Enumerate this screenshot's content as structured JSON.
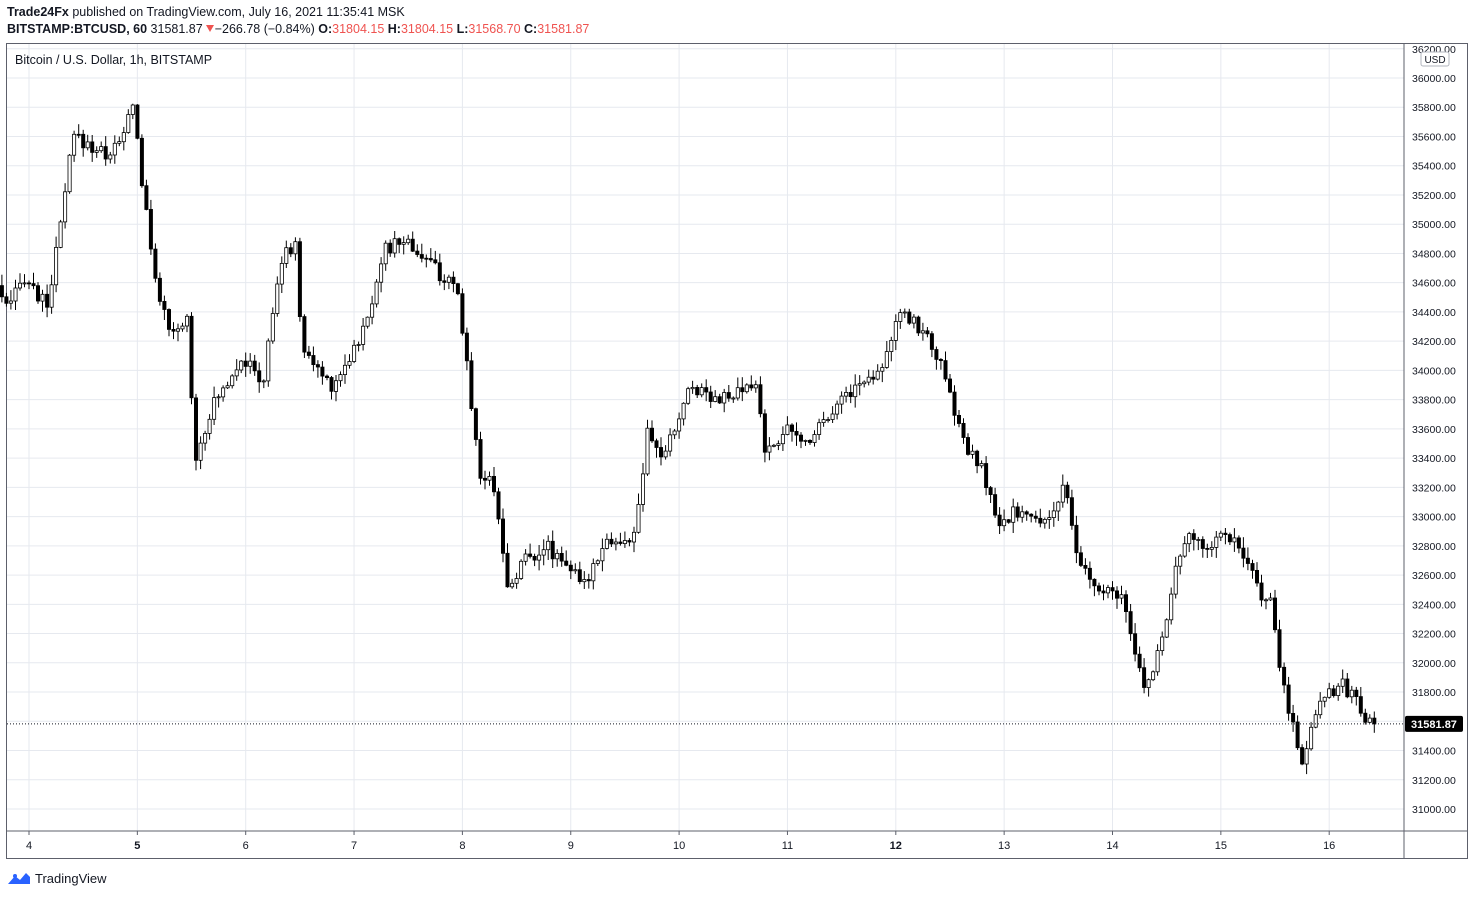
{
  "header": {
    "author": "Trade24Fx",
    "published_text": "published on TradingView.com, July 16, 2021 11:35:41 MSK",
    "symbol": "BITSTAMP:BTCUSD, 60",
    "last": "31581.87",
    "change": "−266.78 (−0.84%)",
    "o_label": "O:",
    "o": "31804.15",
    "h_label": "H:",
    "h": "31804.15",
    "l_label": "L:",
    "l": "31568.70",
    "c_label": "C:",
    "c": "31581.87"
  },
  "pane_title": "Bitcoin / U.S. Dollar, 1h, BITSTAMP",
  "currency_badge": "USD",
  "price_tag": "31581.87",
  "footer": {
    "brand": "TradingView"
  },
  "colors": {
    "candle": "#000000",
    "grid": "#e6e9ef",
    "down": "#ef5350",
    "tag_bg": "#000000",
    "brand": "#2962ff"
  },
  "chart_data": {
    "type": "candlestick",
    "interval": "1h",
    "x_ticks": [
      "4",
      "5",
      "6",
      "7",
      "8",
      "9",
      "10",
      "11",
      "12",
      "13",
      "14",
      "15",
      "16"
    ],
    "y_ticks": [
      31000,
      31200,
      31400,
      31600,
      31800,
      32000,
      32200,
      32400,
      32600,
      32800,
      33000,
      33200,
      33400,
      33600,
      33800,
      34000,
      34200,
      34400,
      34600,
      34800,
      35000,
      35200,
      35400,
      35600,
      35800,
      36000,
      36200
    ],
    "ylim": [
      30850,
      36250
    ],
    "last_price": 31581.87,
    "grid": true,
    "path": [
      [
        3.75,
        34580
      ],
      [
        3.85,
        34400
      ],
      [
        4.0,
        34650
      ],
      [
        4.2,
        34430
      ],
      [
        4.3,
        34820
      ],
      [
        4.45,
        35600
      ],
      [
        4.6,
        35540
      ],
      [
        4.75,
        35480
      ],
      [
        4.9,
        35560
      ],
      [
        5.0,
        35850
      ],
      [
        5.07,
        35380
      ],
      [
        5.15,
        34900
      ],
      [
        5.25,
        34500
      ],
      [
        5.35,
        34200
      ],
      [
        5.5,
        34350
      ],
      [
        5.58,
        33400
      ],
      [
        5.7,
        33700
      ],
      [
        5.85,
        33900
      ],
      [
        6.0,
        34100
      ],
      [
        6.2,
        33900
      ],
      [
        6.35,
        34700
      ],
      [
        6.5,
        34900
      ],
      [
        6.55,
        34200
      ],
      [
        6.7,
        34000
      ],
      [
        6.85,
        33900
      ],
      [
        7.0,
        34100
      ],
      [
        7.15,
        34300
      ],
      [
        7.3,
        34800
      ],
      [
        7.5,
        34900
      ],
      [
        7.65,
        34800
      ],
      [
        7.85,
        34650
      ],
      [
        8.0,
        34500
      ],
      [
        8.1,
        33950
      ],
      [
        8.2,
        33300
      ],
      [
        8.35,
        33200
      ],
      [
        8.45,
        32500
      ],
      [
        8.6,
        32700
      ],
      [
        8.8,
        32800
      ],
      [
        9.0,
        32700
      ],
      [
        9.15,
        32500
      ],
      [
        9.35,
        32850
      ],
      [
        9.55,
        32800
      ],
      [
        9.65,
        32950
      ],
      [
        9.75,
        33550
      ],
      [
        9.9,
        33400
      ],
      [
        10.0,
        33600
      ],
      [
        10.15,
        33900
      ],
      [
        10.3,
        33850
      ],
      [
        10.5,
        33800
      ],
      [
        10.75,
        33900
      ],
      [
        10.85,
        33400
      ],
      [
        11.0,
        33600
      ],
      [
        11.2,
        33500
      ],
      [
        11.4,
        33700
      ],
      [
        11.6,
        33850
      ],
      [
        11.8,
        33950
      ],
      [
        11.95,
        34100
      ],
      [
        12.05,
        34350
      ],
      [
        12.2,
        34350
      ],
      [
        12.4,
        34150
      ],
      [
        12.55,
        33800
      ],
      [
        12.7,
        33450
      ],
      [
        12.85,
        33300
      ],
      [
        13.0,
        32900
      ],
      [
        13.15,
        33050
      ],
      [
        13.35,
        32950
      ],
      [
        13.5,
        33050
      ],
      [
        13.6,
        33200
      ],
      [
        13.7,
        32750
      ],
      [
        13.8,
        32600
      ],
      [
        13.95,
        32450
      ],
      [
        14.1,
        32500
      ],
      [
        14.25,
        32050
      ],
      [
        14.35,
        31800
      ],
      [
        14.5,
        32200
      ],
      [
        14.7,
        32850
      ],
      [
        14.9,
        32800
      ],
      [
        15.1,
        32900
      ],
      [
        15.25,
        32700
      ],
      [
        15.4,
        32500
      ],
      [
        15.5,
        32400
      ],
      [
        15.6,
        31900
      ],
      [
        15.7,
        31600
      ],
      [
        15.8,
        31300
      ],
      [
        15.9,
        31650
      ],
      [
        16.0,
        31800
      ],
      [
        16.15,
        31850
      ],
      [
        16.3,
        31750
      ],
      [
        16.42,
        31580
      ]
    ]
  }
}
